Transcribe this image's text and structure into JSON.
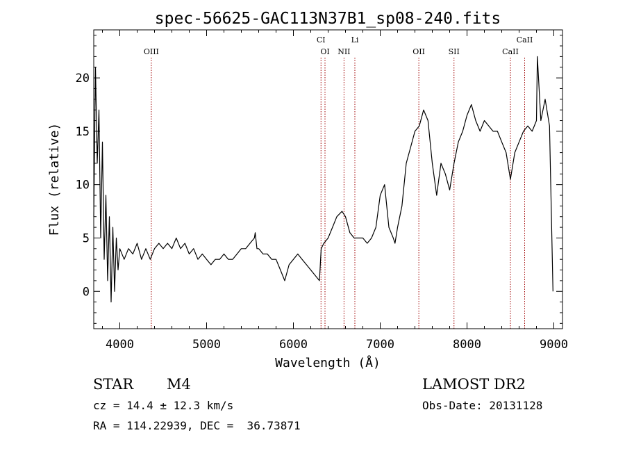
{
  "chart_data": {
    "type": "line",
    "title": "spec-56625-GAC113N37B1_sp08-240.fits",
    "xlabel": "Wavelength (Å)",
    "ylabel": "Flux (relative)",
    "xlim": [
      3700,
      9100
    ],
    "ylim": [
      -3.5,
      24.5
    ],
    "x_ticks": [
      4000,
      5000,
      6000,
      7000,
      8000,
      9000
    ],
    "y_ticks": [
      0,
      5,
      10,
      15,
      20
    ],
    "grid": false,
    "lines": [
      {
        "label": "OIII",
        "wavelength": 4363,
        "label_row": "low"
      },
      {
        "label": "CI",
        "wavelength": 6318,
        "label_row": "high"
      },
      {
        "label": "OI",
        "wavelength": 6364,
        "label_row": "low"
      },
      {
        "label": "NII",
        "wavelength": 6583,
        "label_row": "low"
      },
      {
        "label": "Li",
        "wavelength": 6708,
        "label_row": "high"
      },
      {
        "label": "OII",
        "wavelength": 7445,
        "label_row": "low"
      },
      {
        "label": "SII",
        "wavelength": 7850,
        "label_row": "low"
      },
      {
        "label": "CaII",
        "wavelength": 8500,
        "label_row": "low"
      },
      {
        "label": "CaII",
        "wavelength": 8664,
        "label_row": "high"
      }
    ],
    "series": [
      {
        "x": [
          3700,
          3720,
          3740,
          3760,
          3780,
          3800,
          3820,
          3840,
          3860,
          3880,
          3900,
          3920,
          3940,
          3960,
          3980,
          4000,
          4050,
          4100,
          4150,
          4200,
          4250,
          4300,
          4350,
          4400,
          4450,
          4500,
          4550,
          4600,
          4650,
          4700,
          4750,
          4800,
          4850,
          4900,
          4950,
          5000,
          5050,
          5100,
          5150,
          5200,
          5250,
          5300,
          5350,
          5400,
          5450,
          5500,
          5550,
          5560,
          5580,
          5600,
          5650,
          5700,
          5750,
          5800,
          5850,
          5900,
          5950,
          6000,
          6050,
          6100,
          6150,
          6200,
          6250,
          6300,
          6320,
          6350,
          6400,
          6450,
          6500,
          6560,
          6600,
          6650,
          6700,
          6750,
          6800,
          6850,
          6900,
          6950,
          7000,
          7050,
          7100,
          7150,
          7170,
          7200,
          7250,
          7300,
          7350,
          7400,
          7450,
          7500,
          7550,
          7600,
          7650,
          7700,
          7750,
          7800,
          7850,
          7900,
          7950,
          8000,
          8050,
          8100,
          8150,
          8200,
          8250,
          8300,
          8350,
          8400,
          8450,
          8500,
          8550,
          8600,
          8650,
          8700,
          8750,
          8800,
          8810,
          8850,
          8900,
          8950,
          8990
        ],
        "y": [
          7,
          21,
          12,
          17,
          5,
          14,
          3,
          9,
          1,
          7,
          -1,
          6,
          0,
          5,
          2,
          4,
          3,
          4,
          3.5,
          4.5,
          3,
          4,
          3,
          4,
          4.5,
          4,
          4.5,
          4,
          5,
          4,
          4.5,
          3.5,
          4,
          3,
          3.5,
          3,
          2.5,
          3,
          3,
          3.5,
          3,
          3,
          3.5,
          4,
          4,
          4.5,
          5,
          5.5,
          4,
          4,
          3.5,
          3.5,
          3,
          3,
          2,
          1,
          2.5,
          3,
          3.5,
          3,
          2.5,
          2,
          1.5,
          1,
          4,
          4.5,
          5,
          6,
          7,
          7.5,
          7,
          5.5,
          5,
          5,
          5,
          4.5,
          5,
          6,
          9,
          10,
          6,
          5,
          4.5,
          6,
          8,
          12,
          13.5,
          15,
          15.5,
          17,
          16,
          12,
          9,
          12,
          11,
          9.5,
          12,
          14,
          15,
          16.5,
          17.5,
          16,
          15,
          16,
          15.5,
          15,
          15,
          14,
          13,
          10.5,
          13,
          14,
          15,
          15.5,
          15,
          16,
          22,
          16,
          18,
          15.5,
          0
        ]
      }
    ]
  },
  "info": {
    "obj_class": "STAR",
    "subclass": "M4",
    "redshift": "cz = 14.4 ± 12.3 km/s",
    "coords": "RA = 114.22939, DEC =  36.73871",
    "survey": "LAMOST DR2",
    "obs_date": "Obs-Date: 20131128"
  }
}
